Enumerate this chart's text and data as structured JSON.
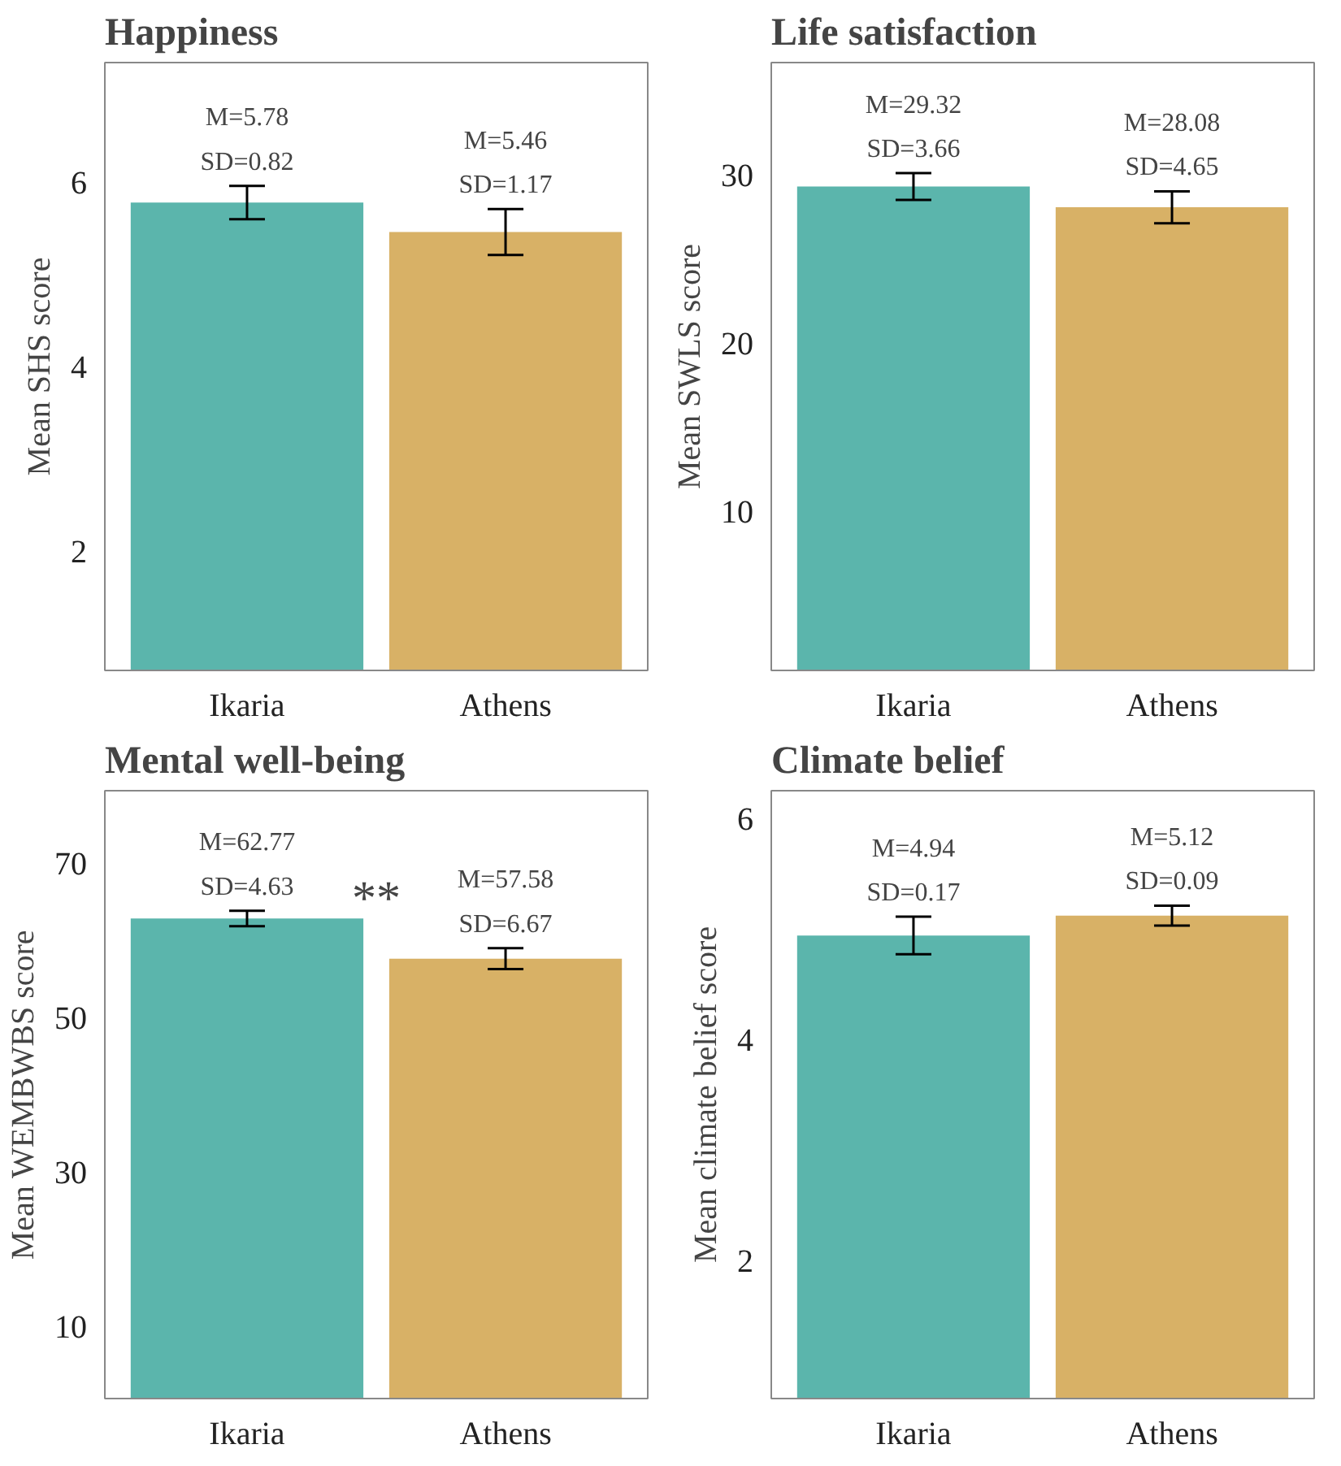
{
  "chart_data": [
    {
      "type": "bar",
      "title": "Happiness",
      "ylabel": "Mean SHS score",
      "categories": [
        "Ikaria",
        "Athens"
      ],
      "values": [
        5.78,
        5.46
      ],
      "colors": [
        "#5bb5ac",
        "#d8b166"
      ],
      "errors": [
        0.18,
        0.25
      ],
      "value_labels": [
        "M=5.78\nSD=0.82",
        "M=5.46\nSD=1.17"
      ],
      "ylim": [
        0.7,
        7.3
      ],
      "yticks": [
        2,
        4,
        6
      ],
      "grid": false
    },
    {
      "type": "bar",
      "title": "Life satisfaction",
      "ylabel": "Mean SWLS score",
      "categories": [
        "Ikaria",
        "Athens"
      ],
      "values": [
        29.32,
        28.08
      ],
      "colors": [
        "#5bb5ac",
        "#d8b166"
      ],
      "errors": [
        0.8,
        0.95
      ],
      "value_labels": [
        "M=29.32\nSD=3.66",
        "M=28.08\nSD=4.65"
      ],
      "ylim": [
        0.5,
        36.7
      ],
      "yticks": [
        10,
        20,
        30
      ],
      "grid": false
    },
    {
      "type": "bar",
      "title": "Mental well-being",
      "ylabel": "Mean WEMBWBS score",
      "categories": [
        "Ikaria",
        "Athens"
      ],
      "values": [
        62.77,
        57.58
      ],
      "colors": [
        "#5bb5ac",
        "#d8b166"
      ],
      "errors": [
        1.0,
        1.35
      ],
      "value_labels": [
        "M=62.77\nSD=4.63",
        "M=57.58\nSD=6.67"
      ],
      "ylim": [
        0.7,
        79.3
      ],
      "yticks": [
        10,
        30,
        50,
        70
      ],
      "grid": false,
      "annotations": [
        "**"
      ]
    },
    {
      "type": "bar",
      "title": "Climate belief",
      "ylabel": "Mean climate belief score",
      "categories": [
        "Ikaria",
        "Athens"
      ],
      "values": [
        4.94,
        5.12
      ],
      "colors": [
        "#5bb5ac",
        "#d8b166"
      ],
      "errors": [
        0.17,
        0.09
      ],
      "value_labels": [
        "M=4.94\nSD=0.17",
        "M=5.12\nSD=0.09"
      ],
      "ylim": [
        0.75,
        6.25
      ],
      "yticks": [
        2,
        4,
        6
      ],
      "grid": false
    }
  ]
}
